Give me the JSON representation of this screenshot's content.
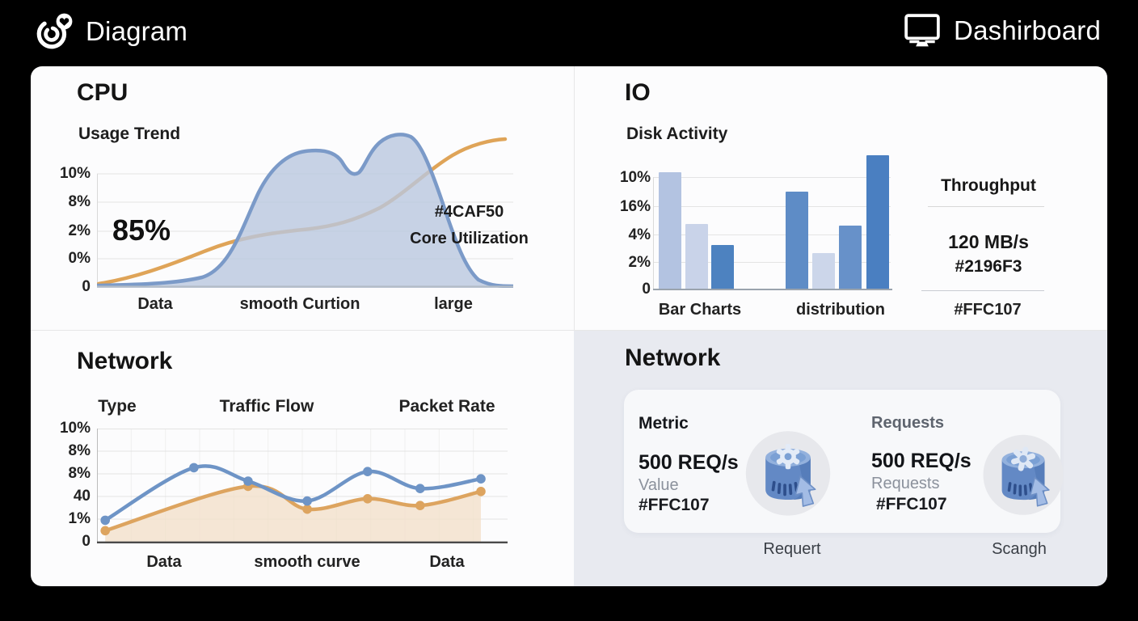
{
  "header": {
    "app_title": "Diagram",
    "dashboard_label": "Dashirboard"
  },
  "panels": {
    "cpu": {
      "title": "CPU",
      "subtitle": "Usage Trend",
      "big_value": "85%",
      "annotation_color": "#4CAF50",
      "annotation_label": "Core Utilization",
      "y_ticks": [
        "10%",
        "8%",
        "2%",
        "0%",
        "0"
      ],
      "x_labels": [
        "Data",
        "smooth Curtion",
        "large"
      ]
    },
    "io": {
      "title": "IO",
      "subtitle": "Disk Activity",
      "y_ticks": [
        "10%",
        "16%",
        "4%",
        "2%",
        "0"
      ],
      "x_labels": [
        "Bar Charts",
        "distribution",
        "#FFC107"
      ],
      "throughput_title": "Throughput",
      "throughput_value": "120 MB/s",
      "throughput_color": "#2196F3"
    },
    "network_chart": {
      "title": "Network",
      "col_headers": [
        "Type",
        "Traffic Flow",
        "Packet Rate"
      ],
      "y_ticks": [
        "10%",
        "8%",
        "8%",
        "40",
        "1%",
        "0"
      ],
      "x_labels": [
        "Data",
        "smooth curve",
        "Data"
      ]
    },
    "network_metrics": {
      "title": "Network",
      "left": {
        "label": "Metric",
        "value": "500 REQ/s",
        "sublabel": "Value",
        "color_code": "#FFC107",
        "caption": "Requert"
      },
      "right": {
        "label": "Requests",
        "value": "500 REQ/s",
        "sublabel": "Requests",
        "color_code": "#FFC107",
        "caption": "Scangh"
      }
    }
  },
  "chart_data": [
    {
      "id": "cpu_usage_trend",
      "type": "area",
      "panel": "CPU",
      "title": "Usage Trend",
      "y_tick_labels": [
        "10%",
        "8%",
        "2%",
        "0%",
        "0"
      ],
      "x_tick_labels": [
        "Data",
        "smooth Curtion",
        "large"
      ],
      "annotations": [
        "85%",
        "#4CAF50",
        "Core Utilization"
      ],
      "series": [
        {
          "name": "core-utilization-area",
          "color": "#7b9ac8",
          "fill": "#b9c7de",
          "approx_profile_pct_of_max": [
            1,
            2,
            5,
            14,
            45,
            82,
            96,
            98,
            90,
            80,
            96,
            100,
            85,
            52,
            20,
            6,
            2
          ]
        },
        {
          "name": "trend-line",
          "color": "#dfa458",
          "approx_profile_pct_of_max": [
            2,
            10,
            24,
            34,
            38,
            40,
            44,
            55,
            70,
            84,
            93,
            96
          ]
        }
      ],
      "grid": true,
      "legend": false
    },
    {
      "id": "io_disk_activity",
      "type": "bar",
      "panel": "IO",
      "title": "Disk Activity",
      "y_tick_labels": [
        "10%",
        "16%",
        "4%",
        "2%",
        "0"
      ],
      "group_labels": [
        "Bar Charts",
        "distribution"
      ],
      "units_note": "value_units are in y-gridline intervals; top gridline = 4 units",
      "bars": [
        {
          "group": 0,
          "value_units": 4.2,
          "color": "#b3c3e1"
        },
        {
          "group": 0,
          "value_units": 2.35,
          "color": "#c9d3e9"
        },
        {
          "group": 0,
          "value_units": 1.6,
          "color": "#4d82c0"
        },
        {
          "group": 1,
          "value_units": 3.5,
          "color": "#5e8cc6"
        },
        {
          "group": 1,
          "value_units": 1.3,
          "color": "#ccd6ea"
        },
        {
          "group": 1,
          "value_units": 2.3,
          "color": "#6791c9"
        },
        {
          "group": 1,
          "value_units": 4.8,
          "color": "#4a7fc1"
        }
      ],
      "grid": true,
      "legend": false
    },
    {
      "id": "network_traffic",
      "type": "line",
      "panel": "Network",
      "column_headers": [
        "Type",
        "Traffic Flow",
        "Packet Rate"
      ],
      "y_tick_labels": [
        "10%",
        "8%",
        "8%",
        "40",
        "1%",
        "0"
      ],
      "x_tick_labels": [
        "Data",
        "smooth curve",
        "Data"
      ],
      "units_note": "points are [x_fraction_of_plot_width, y_in_gridline_units]; top gridline = 5 units",
      "series": [
        {
          "name": "packet-rate-line",
          "color": "#6e94c6",
          "points": [
            [
              0.02,
              0.95
            ],
            [
              0.236,
              3.27
            ],
            [
              0.368,
              2.68
            ],
            [
              0.512,
              1.8
            ],
            [
              0.659,
              3.1
            ],
            [
              0.787,
              2.35
            ],
            [
              0.935,
              2.78
            ]
          ]
        },
        {
          "name": "traffic-flow-line",
          "color": "#dda45f",
          "fill": "#f2e0cb",
          "points": [
            [
              0.02,
              0.49
            ],
            [
              0.368,
              2.45
            ],
            [
              0.512,
              1.44
            ],
            [
              0.659,
              1.9
            ],
            [
              0.787,
              1.6
            ],
            [
              0.935,
              2.22
            ]
          ]
        }
      ],
      "grid": true,
      "legend": false
    }
  ],
  "colors": {
    "topbar_bg": "#000000",
    "panel_bg": "#fcfcfd",
    "metrics_quadrant_bg": "#e8eaf0",
    "card_bg": "#f7f8fa",
    "blue_line": "#6e94c6",
    "orange_line": "#dda45f",
    "cpu_area_fill": "#b9c7de"
  }
}
